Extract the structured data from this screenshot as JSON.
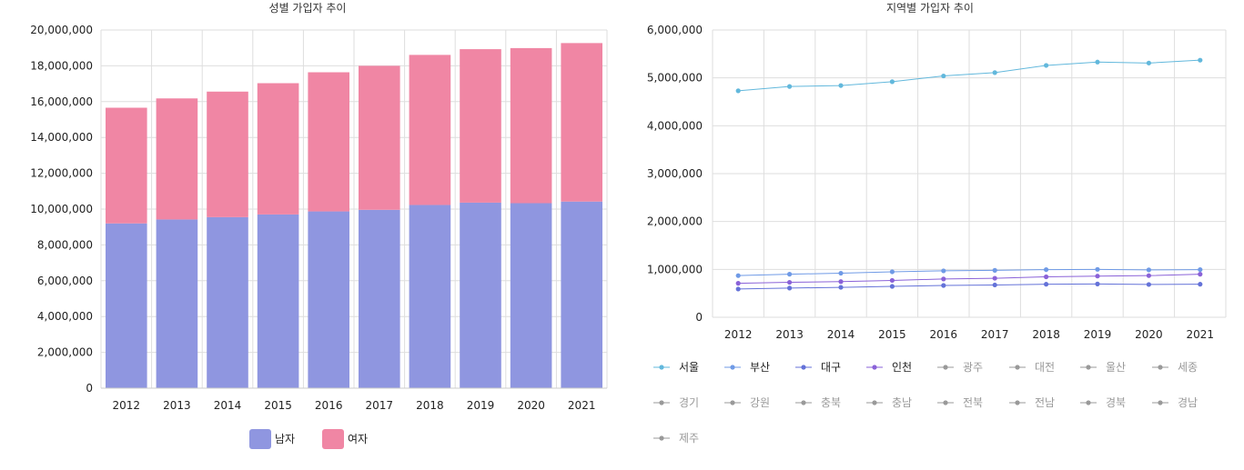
{
  "chart_data": [
    {
      "type": "bar",
      "stacked": true,
      "title": "성별 가입자 추이",
      "categories": [
        "2012",
        "2013",
        "2014",
        "2015",
        "2016",
        "2017",
        "2018",
        "2019",
        "2020",
        "2021"
      ],
      "series": [
        {
          "name": "남자",
          "color": "#8f96e0",
          "values": [
            9200000,
            9420000,
            9550000,
            9700000,
            9870000,
            9960000,
            10230000,
            10360000,
            10330000,
            10420000
          ]
        },
        {
          "name": "여자",
          "color": "#f086a4",
          "values": [
            6460000,
            6760000,
            7010000,
            7330000,
            7770000,
            8040000,
            8380000,
            8570000,
            8660000,
            8850000
          ]
        }
      ],
      "ylim": [
        0,
        20000000
      ],
      "yticks": [
        "0",
        "2,000,000",
        "4,000,000",
        "6,000,000",
        "8,000,000",
        "10,000,000",
        "12,000,000",
        "14,000,000",
        "16,000,000",
        "18,000,000",
        "20,000,000"
      ],
      "grid": true,
      "legend": "bottom"
    },
    {
      "type": "line",
      "title": "지역별 가입자 추이",
      "x": [
        "2012",
        "2013",
        "2014",
        "2015",
        "2016",
        "2017",
        "2018",
        "2019",
        "2020",
        "2021"
      ],
      "series": [
        {
          "name": "서울",
          "color": "#62b8dc",
          "active": true,
          "values": [
            4730000,
            4820000,
            4840000,
            4920000,
            5040000,
            5110000,
            5260000,
            5330000,
            5310000,
            5370000
          ]
        },
        {
          "name": "부산",
          "color": "#6f9ae6",
          "active": true,
          "values": [
            870000,
            900000,
            920000,
            950000,
            970000,
            980000,
            995000,
            1000000,
            990000,
            995000
          ]
        },
        {
          "name": "대구",
          "color": "#6472d8",
          "active": true,
          "values": [
            590000,
            610000,
            625000,
            645000,
            665000,
            675000,
            690000,
            695000,
            685000,
            690000
          ]
        },
        {
          "name": "인천",
          "color": "#8a62d8",
          "active": true,
          "values": [
            710000,
            730000,
            745000,
            770000,
            800000,
            815000,
            845000,
            860000,
            870000,
            900000
          ]
        },
        {
          "name": "광주",
          "color": "#999999",
          "active": false
        },
        {
          "name": "대전",
          "color": "#999999",
          "active": false
        },
        {
          "name": "울산",
          "color": "#999999",
          "active": false
        },
        {
          "name": "세종",
          "color": "#999999",
          "active": false
        },
        {
          "name": "경기",
          "color": "#999999",
          "active": false
        },
        {
          "name": "강원",
          "color": "#999999",
          "active": false
        },
        {
          "name": "충북",
          "color": "#999999",
          "active": false
        },
        {
          "name": "충남",
          "color": "#999999",
          "active": false
        },
        {
          "name": "전북",
          "color": "#999999",
          "active": false
        },
        {
          "name": "전남",
          "color": "#999999",
          "active": false
        },
        {
          "name": "경북",
          "color": "#999999",
          "active": false
        },
        {
          "name": "경남",
          "color": "#999999",
          "active": false
        },
        {
          "name": "제주",
          "color": "#999999",
          "active": false
        }
      ],
      "ylim": [
        0,
        6000000
      ],
      "yticks": [
        "0",
        "1,000,000",
        "2,000,000",
        "3,000,000",
        "4,000,000",
        "5,000,000",
        "6,000,000"
      ],
      "grid": true,
      "legend": "bottom"
    }
  ]
}
